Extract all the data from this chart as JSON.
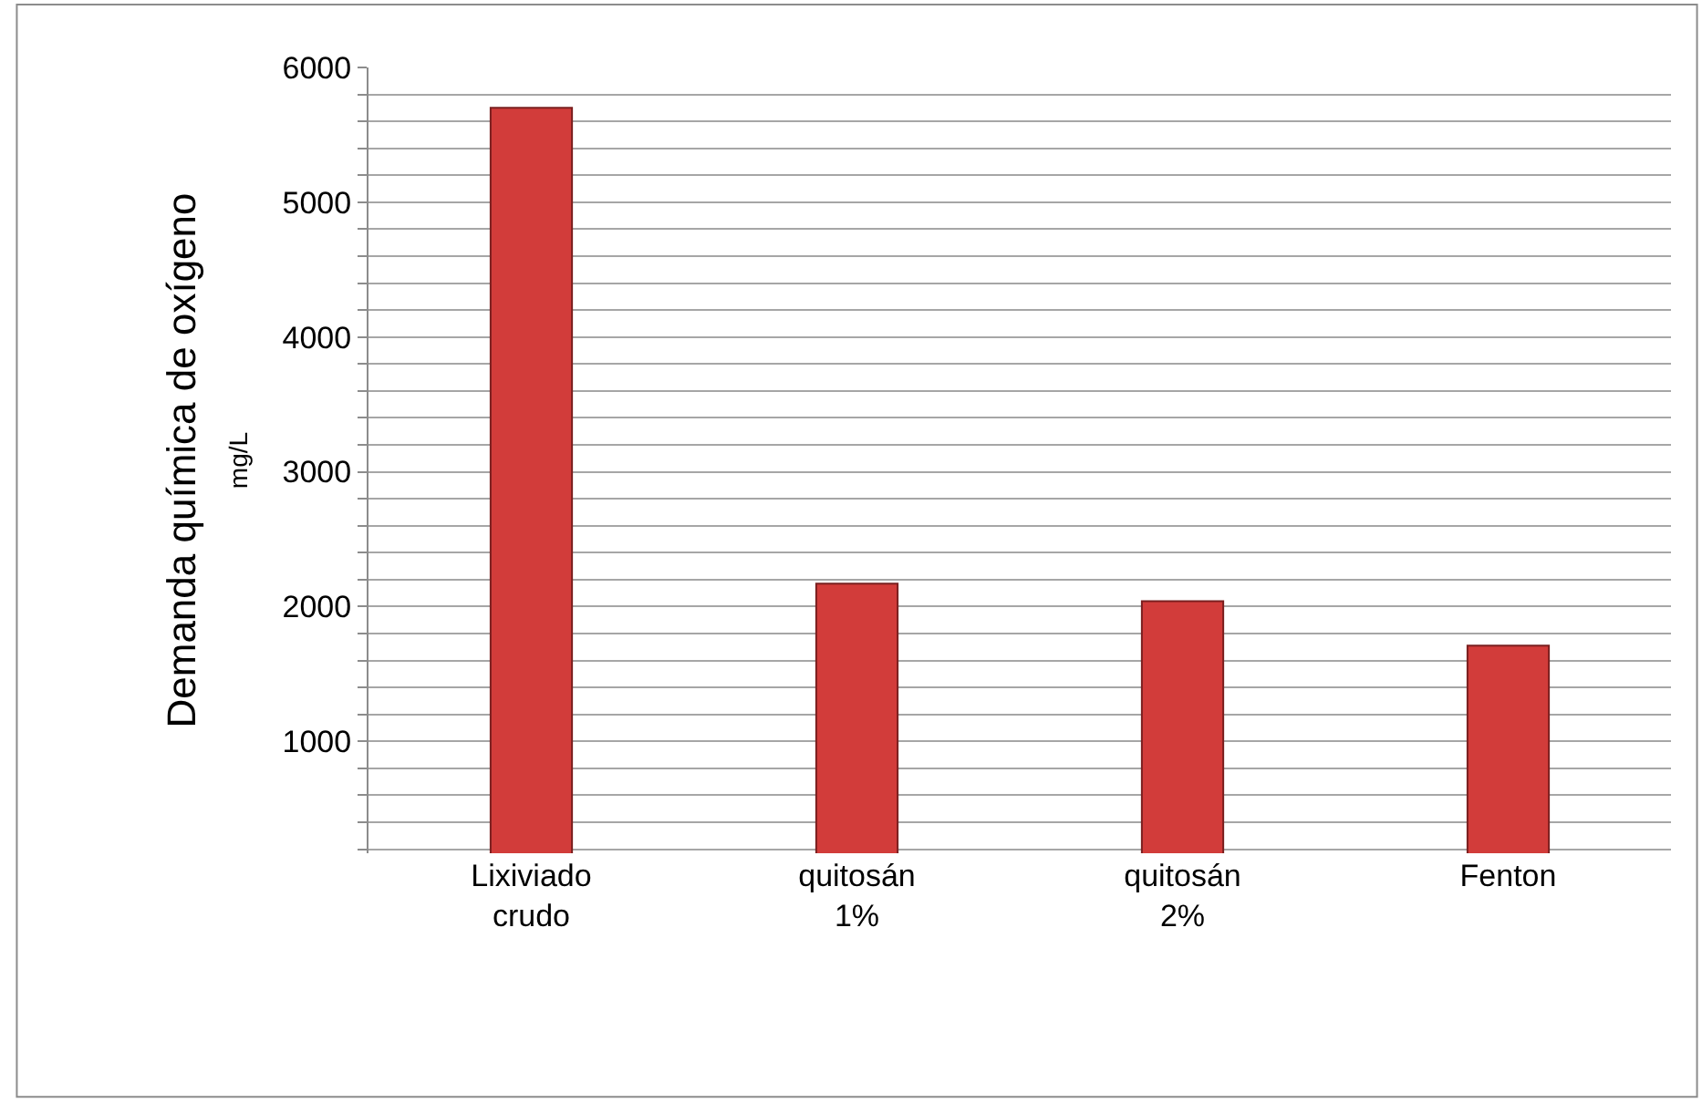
{
  "chart_data": {
    "type": "bar",
    "ylabel": "Demanda química de oxígeno\nmg/L",
    "categories": [
      "Lixiviado\ncrudo",
      "quitosán\n1%",
      "quitosán\n2%",
      "Fenton"
    ],
    "values": [
      5700,
      2170,
      2040,
      1710
    ],
    "color": "#d23c3a",
    "ylim": [
      170,
      6000
    ],
    "yticks": [
      {
        "value": 200,
        "label": null
      },
      {
        "value": 400,
        "label": null
      },
      {
        "value": 600,
        "label": null
      },
      {
        "value": 800,
        "label": null
      },
      1000,
      {
        "value": 1200,
        "label": null
      },
      {
        "value": 1400,
        "label": null
      },
      {
        "value": 1600,
        "label": null
      },
      {
        "value": 1800,
        "label": null
      },
      2000,
      {
        "value": 2200,
        "label": null
      },
      {
        "value": 2400,
        "label": null
      },
      {
        "value": 2600,
        "label": null
      },
      {
        "value": 2800,
        "label": null
      },
      3000,
      {
        "value": 3200,
        "label": null
      },
      {
        "value": 3400,
        "label": null
      },
      {
        "value": 3600,
        "label": null
      },
      {
        "value": 3800,
        "label": null
      },
      4000,
      {
        "value": 4200,
        "label": null
      },
      {
        "value": 4400,
        "label": null
      },
      {
        "value": 4600,
        "label": null
      },
      {
        "value": 4800,
        "label": null
      },
      5000,
      {
        "value": 5200,
        "label": null
      },
      {
        "value": 5400,
        "label": null
      },
      {
        "value": 5600,
        "label": null
      },
      {
        "value": 5800,
        "label": null
      },
      6000
    ],
    "grid": "y"
  }
}
